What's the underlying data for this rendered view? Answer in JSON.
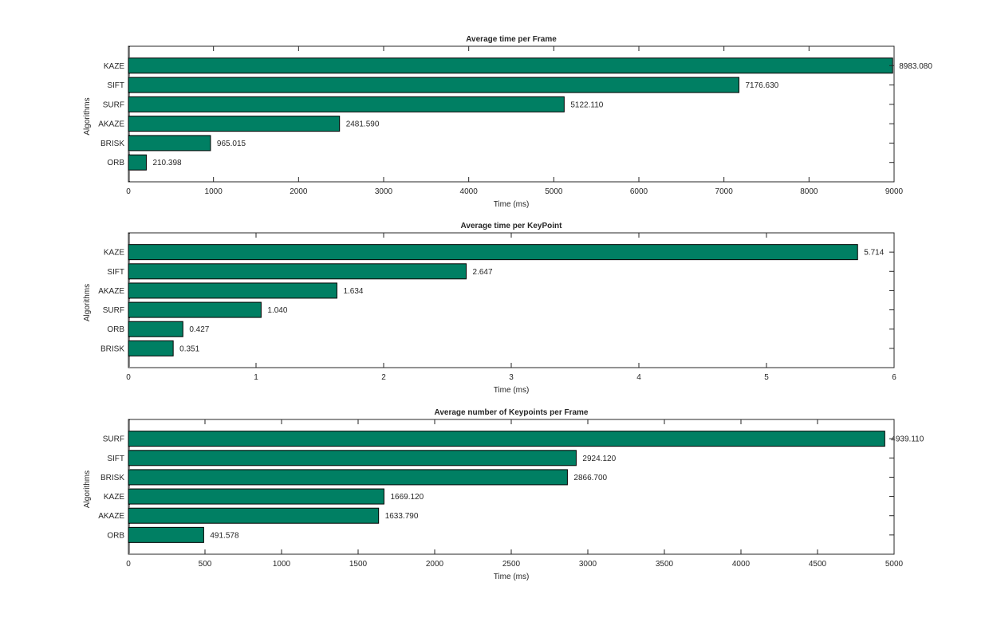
{
  "chart_data": [
    {
      "type": "bar",
      "orientation": "horizontal",
      "title": "Average time per Frame",
      "xlabel": "Time (ms)",
      "ylabel": "Algorithms",
      "xlim": [
        0,
        9000
      ],
      "xticks": [
        0,
        1000,
        2000,
        3000,
        4000,
        5000,
        6000,
        7000,
        8000,
        9000
      ],
      "categories": [
        "KAZE",
        "SIFT",
        "SURF",
        "AKAZE",
        "BRISK",
        "ORB"
      ],
      "values": [
        8983.08,
        7176.63,
        5122.11,
        2481.59,
        965.015,
        210.398
      ],
      "value_labels": [
        "8983.080",
        "7176.630",
        "5122.110",
        "2481.590",
        "965.015",
        "210.398"
      ],
      "bar_color": "#007f63",
      "grid": false
    },
    {
      "type": "bar",
      "orientation": "horizontal",
      "title": "Average time per KeyPoint",
      "xlabel": "Time (ms)",
      "ylabel": "Algorithms",
      "xlim": [
        0,
        6
      ],
      "xticks": [
        0,
        1,
        2,
        3,
        4,
        5,
        6
      ],
      "categories": [
        "KAZE",
        "SIFT",
        "AKAZE",
        "SURF",
        "ORB",
        "BRISK"
      ],
      "values": [
        5.714,
        2.647,
        1.634,
        1.04,
        0.427,
        0.351
      ],
      "value_labels": [
        "5.714",
        "2.647",
        "1.634",
        "1.040",
        "0.427",
        "0.351"
      ],
      "bar_color": "#007f63",
      "grid": false
    },
    {
      "type": "bar",
      "orientation": "horizontal",
      "title": "Average number of Keypoints per Frame",
      "xlabel": "Time (ms)",
      "ylabel": "Algorithms",
      "xlim": [
        0,
        5000
      ],
      "xticks": [
        0,
        500,
        1000,
        1500,
        2000,
        2500,
        3000,
        3500,
        4000,
        4500,
        5000
      ],
      "categories": [
        "SURF",
        "SIFT",
        "BRISK",
        "KAZE",
        "AKAZE",
        "ORB"
      ],
      "values": [
        4939.11,
        2924.12,
        2866.7,
        1669.12,
        1633.79,
        491.578
      ],
      "value_labels": [
        "4939.110",
        "2924.120",
        "2866.700",
        "1669.120",
        "1633.790",
        "491.578"
      ],
      "bar_color": "#007f63",
      "grid": false
    }
  ]
}
